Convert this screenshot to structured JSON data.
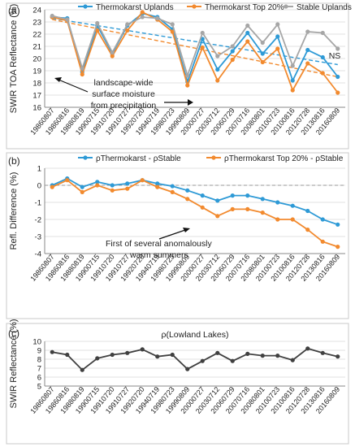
{
  "chart_data": [
    {
      "type": "line",
      "panel_label": "(a)",
      "ylabel": "SWIR TOA Reflectance (%)",
      "ylim": [
        16,
        24
      ],
      "yticks": [
        16,
        17,
        18,
        19,
        20,
        21,
        22,
        23,
        24
      ],
      "categories": [
        "19860807",
        "19860816",
        "19880819",
        "19900715",
        "19910720",
        "19910727",
        "19920720",
        "19940719",
        "19980723",
        "19990809",
        "20000727",
        "20030712",
        "20060729",
        "20070716",
        "20080801",
        "20100723",
        "20100816",
        "20120728",
        "20130816",
        "20160809"
      ],
      "legend_position": "top",
      "series": [
        {
          "name": "Thermokarst Uplands",
          "color": "#2e9ad6",
          "values": [
            23.4,
            23.3,
            18.9,
            22.7,
            20.4,
            22.7,
            23.7,
            23.4,
            22.4,
            18.1,
            21.6,
            19.1,
            20.6,
            22.1,
            20.4,
            21.8,
            18.2,
            20.7,
            20.1,
            18.5
          ]
        },
        {
          "name": "Thermokarst Top 20%",
          "color": "#f28a2e",
          "values": [
            23.4,
            23.1,
            18.7,
            22.3,
            20.2,
            22.3,
            23.8,
            23.2,
            22.2,
            17.8,
            20.9,
            18.2,
            19.9,
            21.4,
            19.7,
            20.8,
            17.4,
            19.6,
            18.8,
            17.2
          ]
        },
        {
          "name": "Stable Uplands",
          "color": "#a6a6a6",
          "values": [
            23.5,
            23.2,
            19.2,
            22.9,
            20.5,
            22.8,
            23.4,
            23.3,
            22.8,
            18.6,
            22.1,
            20.2,
            21.0,
            22.7,
            21.3,
            22.8,
            19.4,
            22.2,
            22.1,
            20.8
          ]
        }
      ],
      "trendlines": [
        {
          "series": "Thermokarst Uplands",
          "color": "#2e9ad6",
          "from": [
            0,
            23.3
          ],
          "to": [
            19,
            19.5
          ]
        },
        {
          "series": "Thermokarst Top 20%",
          "color": "#f28a2e",
          "from": [
            0,
            23.2
          ],
          "to": [
            19,
            18.5
          ]
        }
      ],
      "annotations": {
        "ns": "NS",
        "moisture_line1": "landscape-wide",
        "moisture_line2": "surface moisture",
        "moisture_line3": "from precipitation"
      }
    },
    {
      "type": "line",
      "panel_label": "(b)",
      "ylabel": "Refl. Difference (%)",
      "ylim": [
        -4,
        1
      ],
      "yticks": [
        -4,
        -3,
        -2,
        -1,
        0,
        1
      ],
      "zero_line": true,
      "categories": [
        "19860807",
        "19860816",
        "19880819",
        "19900715",
        "19910720",
        "19910727",
        "19920720",
        "19940719",
        "19980723",
        "19990809",
        "20000727",
        "20030712",
        "20060729",
        "20070716",
        "20080801",
        "20100723",
        "20100816",
        "20120728",
        "20130816",
        "20160809"
      ],
      "legend_position": "top",
      "series": [
        {
          "name": "ρThermokarst -  ρStable",
          "color": "#2e9ad6",
          "values": [
            0.0,
            0.4,
            -0.1,
            0.2,
            0.0,
            0.1,
            0.3,
            0.1,
            -0.05,
            -0.3,
            -0.6,
            -0.9,
            -0.6,
            -0.6,
            -0.8,
            -1.0,
            -1.2,
            -1.5,
            -2.0,
            -2.3
          ]
        },
        {
          "name": "ρThermokarst Top 20% -  ρStable",
          "color": "#f28a2e",
          "values": [
            -0.1,
            0.3,
            -0.4,
            0.0,
            -0.3,
            -0.2,
            0.3,
            -0.1,
            -0.4,
            -0.8,
            -1.3,
            -1.8,
            -1.4,
            -1.4,
            -1.6,
            -2.0,
            -2.0,
            -2.6,
            -3.3,
            -3.6
          ]
        }
      ],
      "annotations": {
        "summer_line1": "First of several anomalously",
        "summer_line2": "warm summers"
      }
    },
    {
      "type": "line",
      "panel_label": "(c)",
      "title": "ρ(Lowland Lakes)",
      "ylabel": "SWIR Reflectance (%)",
      "ylim": [
        5,
        10
      ],
      "yticks": [
        5,
        6,
        7,
        8,
        9,
        10
      ],
      "categories": [
        "19860807",
        "19860816",
        "19880819",
        "19900715",
        "19910720",
        "19910727",
        "19920720",
        "19940719",
        "19980723",
        "19990809",
        "20000727",
        "20030712",
        "20060729",
        "20070716",
        "20080801",
        "20100723",
        "20100816",
        "20120728",
        "20130816",
        "20160809"
      ],
      "series": [
        {
          "name": "",
          "color": "#404040",
          "values": [
            8.8,
            8.5,
            6.8,
            8.1,
            8.5,
            8.7,
            9.1,
            8.3,
            8.5,
            6.9,
            7.8,
            8.7,
            7.8,
            8.6,
            8.4,
            8.4,
            7.9,
            9.2,
            8.7,
            8.3
          ]
        }
      ]
    }
  ]
}
